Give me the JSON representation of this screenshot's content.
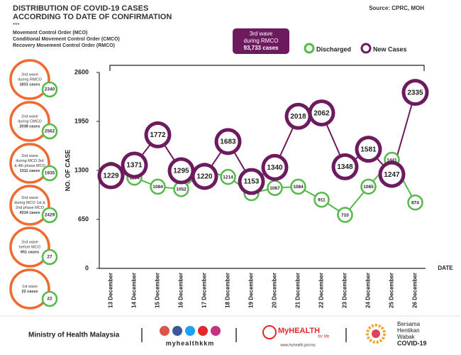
{
  "header": {
    "title": [
      "DISTRIBUTION OF COVID-19 CASES",
      "ACCORDING TO DATE OF CONFIRMATION"
    ],
    "stars": "***",
    "orders": [
      "Movement Control Order (MCO)",
      "Conditional Movement Control Order (CMCO)",
      "Recovery Movement Control Order (RMCO)"
    ],
    "source": "Source: CPRC, MOH"
  },
  "waves": [
    {
      "lines": [
        "2nd wave",
        "during RMCO",
        "1831 cases"
      ],
      "discharged": "2340"
    },
    {
      "lines": [
        "2nd wave",
        "during CMCO",
        "2038 cases"
      ],
      "discharged": "2562"
    },
    {
      "lines": [
        "2nd wave",
        "during MCO 3rd",
        "& 4th phase MCO",
        "1311 cases"
      ],
      "discharged": "1935"
    },
    {
      "lines": [
        "2nd wave",
        "during MCO 1st &",
        "2nd phase MCO",
        "4314 cases"
      ],
      "discharged": "2429"
    },
    {
      "lines": [
        "2nd wave",
        "before MCO",
        "651 cases"
      ],
      "discharged": "27"
    },
    {
      "lines": [
        "1st wave",
        "22 cases"
      ],
      "discharged": "22"
    }
  ],
  "chart_data": {
    "type": "line",
    "annotation": [
      "3rd wave",
      "during RMCO",
      "93,733 cases"
    ],
    "ylabel": "NO. OF CASE",
    "xlabel": "DATE",
    "categories": [
      "13 December",
      "14 December",
      "15 December",
      "16 December",
      "17 December",
      "18 December",
      "19 December",
      "20 December",
      "21 December",
      "22 December",
      "23 December",
      "24 December",
      "25 December",
      "26 December"
    ],
    "series": [
      {
        "name": "Discharged",
        "color": "#55b94a",
        "values": [
          1309,
          1204,
          1084,
          1052,
          1297,
          1214,
          998,
          1067,
          1084,
          911,
          710,
          1085,
          1441,
          874
        ]
      },
      {
        "name": "New Cases",
        "color": "#6d1a5f",
        "values": [
          1229,
          1371,
          1772,
          1295,
          1220,
          1683,
          1153,
          1340,
          2018,
          2062,
          1348,
          1581,
          1247,
          2335
        ]
      }
    ],
    "ylim": [
      0,
      2600
    ],
    "yticks": [
      0,
      650,
      1300,
      1950,
      2600
    ]
  },
  "footer": {
    "ministry": "Ministry of Health Malaysia",
    "handle": "myhealthkkm",
    "brand": "MyHEALTH",
    "tagline": "for life",
    "url": "www.myhealth.gov.my",
    "campaign": [
      "Bersama",
      "Hentikan",
      "Wabak",
      "COVID-19"
    ]
  }
}
